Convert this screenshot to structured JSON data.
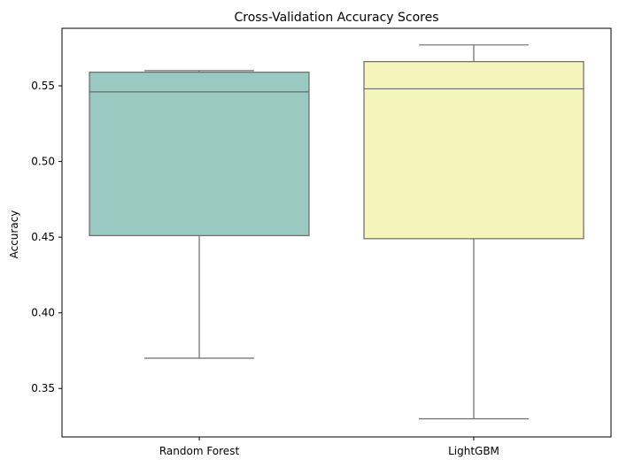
{
  "chart_data": {
    "type": "box",
    "title": "Cross-Validation Accuracy Scores",
    "xlabel": "",
    "ylabel": "Accuracy",
    "ylim": [
      0.318,
      0.588
    ],
    "yticks": [
      0.35,
      0.4,
      0.45,
      0.5,
      0.55
    ],
    "ytick_labels": [
      "0.35",
      "0.40",
      "0.45",
      "0.50",
      "0.55"
    ],
    "categories": [
      "Random Forest",
      "LightGBM"
    ],
    "boxes": [
      {
        "category": "Random Forest",
        "whisker_low": 0.37,
        "q1": 0.451,
        "median": 0.546,
        "q3": 0.559,
        "whisker_high": 0.56,
        "color": "#99c9c1"
      },
      {
        "category": "LightGBM",
        "whisker_low": 0.33,
        "q1": 0.449,
        "median": 0.548,
        "q3": 0.566,
        "whisker_high": 0.577,
        "color": "#f5f5bb"
      }
    ],
    "line_color": "#6b6b6b",
    "grid": false,
    "legend": "none"
  }
}
